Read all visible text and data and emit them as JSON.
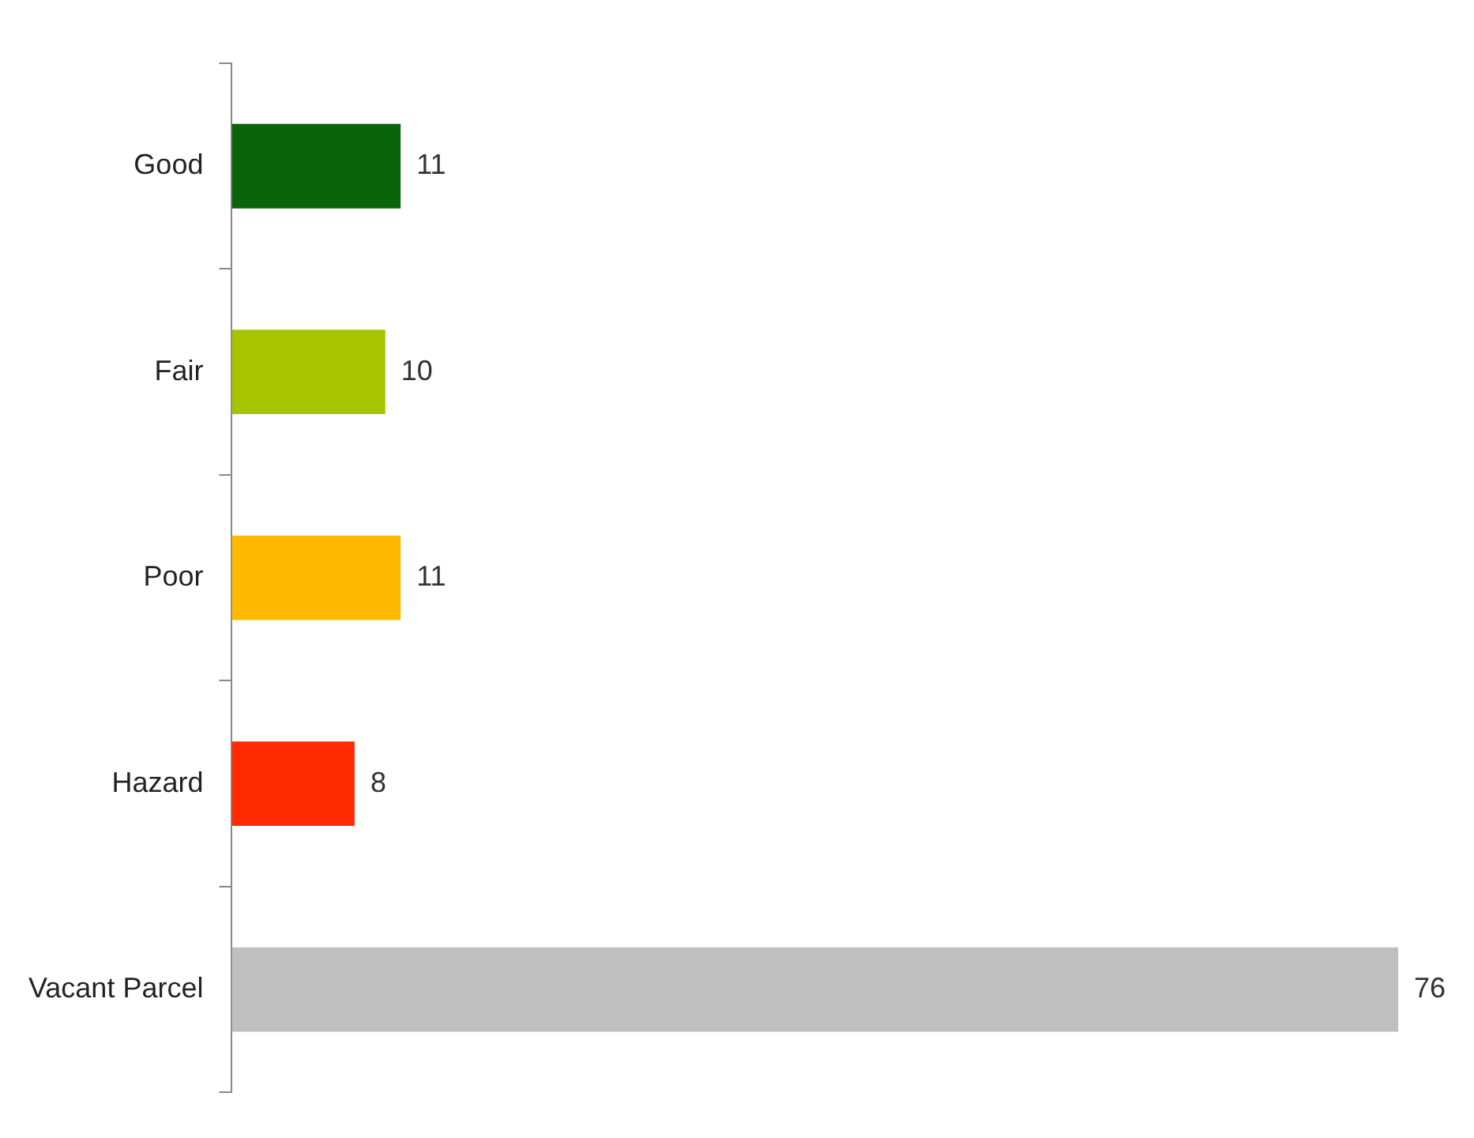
{
  "chart_data": {
    "type": "bar",
    "orientation": "horizontal",
    "categories": [
      "Good",
      "Fair",
      "Poor",
      "Hazard",
      "Vacant Parcel"
    ],
    "values": [
      11,
      10,
      11,
      8,
      76
    ],
    "colors": [
      "#0b640b",
      "#a6c500",
      "#ffb900",
      "#ff2a00",
      "#bfbfbf"
    ],
    "data_labels": true,
    "legend": false
  }
}
